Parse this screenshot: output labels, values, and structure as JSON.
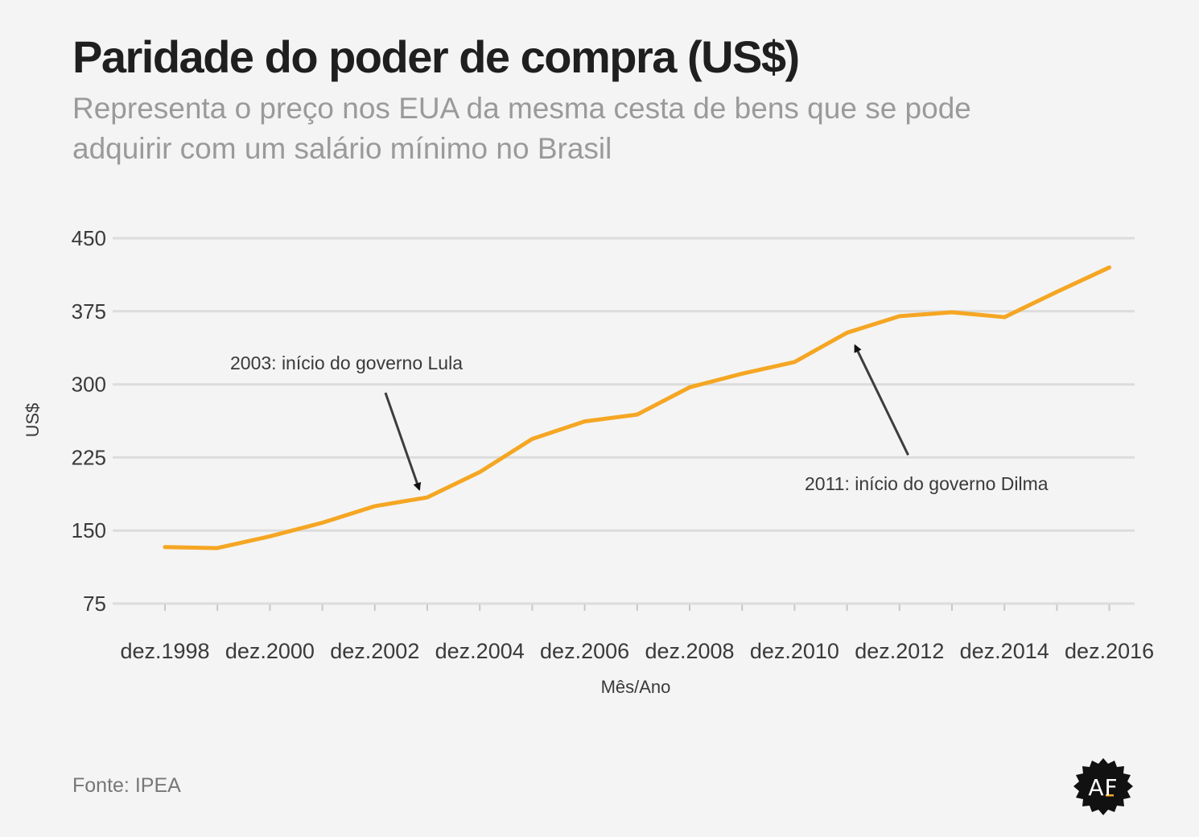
{
  "title": "Paridade do poder de compra (US$)",
  "subtitle": "Representa o preço nos EUA da mesma cesta de bens que se pode adquirir com um salário mínimo no Brasil",
  "source": "Fonte: IPEA",
  "logo": "AF",
  "colors": {
    "line": "#f5a623",
    "grid": "#dcdcdc",
    "text": "#3a3a3a",
    "arrow": "#3d3d3d",
    "background": "#f4f4f4"
  },
  "chart_data": {
    "type": "line",
    "xlabel": "Mês/Ano",
    "ylabel": "US$",
    "ylim": [
      75,
      450
    ],
    "yticks": [
      75,
      150,
      225,
      300,
      375,
      450
    ],
    "grid": true,
    "x": [
      "dez.1998",
      "dez.1999",
      "dez.2000",
      "dez.2001",
      "dez.2002",
      "dez.2003",
      "dez.2004",
      "dez.2005",
      "dez.2006",
      "dez.2007",
      "dez.2008",
      "dez.2009",
      "dez.2010",
      "dez.2011",
      "dez.2012",
      "dez.2013",
      "dez.2014",
      "dez.2015",
      "dez.2016"
    ],
    "x_tick_labels": [
      "dez.1998",
      "dez.2000",
      "dez.2002",
      "dez.2004",
      "dez.2006",
      "dez.2008",
      "dez.2010",
      "dez.2012",
      "dez.2014",
      "dez.2016"
    ],
    "series": [
      {
        "values": [
          133,
          132,
          144,
          158,
          175,
          184,
          210,
          244,
          262,
          269,
          297,
          311,
          323,
          353,
          370,
          374,
          369,
          395,
          420
        ]
      }
    ],
    "annotations": [
      {
        "text": "2003: início do governo Lula",
        "x": "dez.2003",
        "y": 184
      },
      {
        "text": "2011: início do governo Dilma",
        "x": "dez.2011",
        "y": 353
      }
    ]
  }
}
